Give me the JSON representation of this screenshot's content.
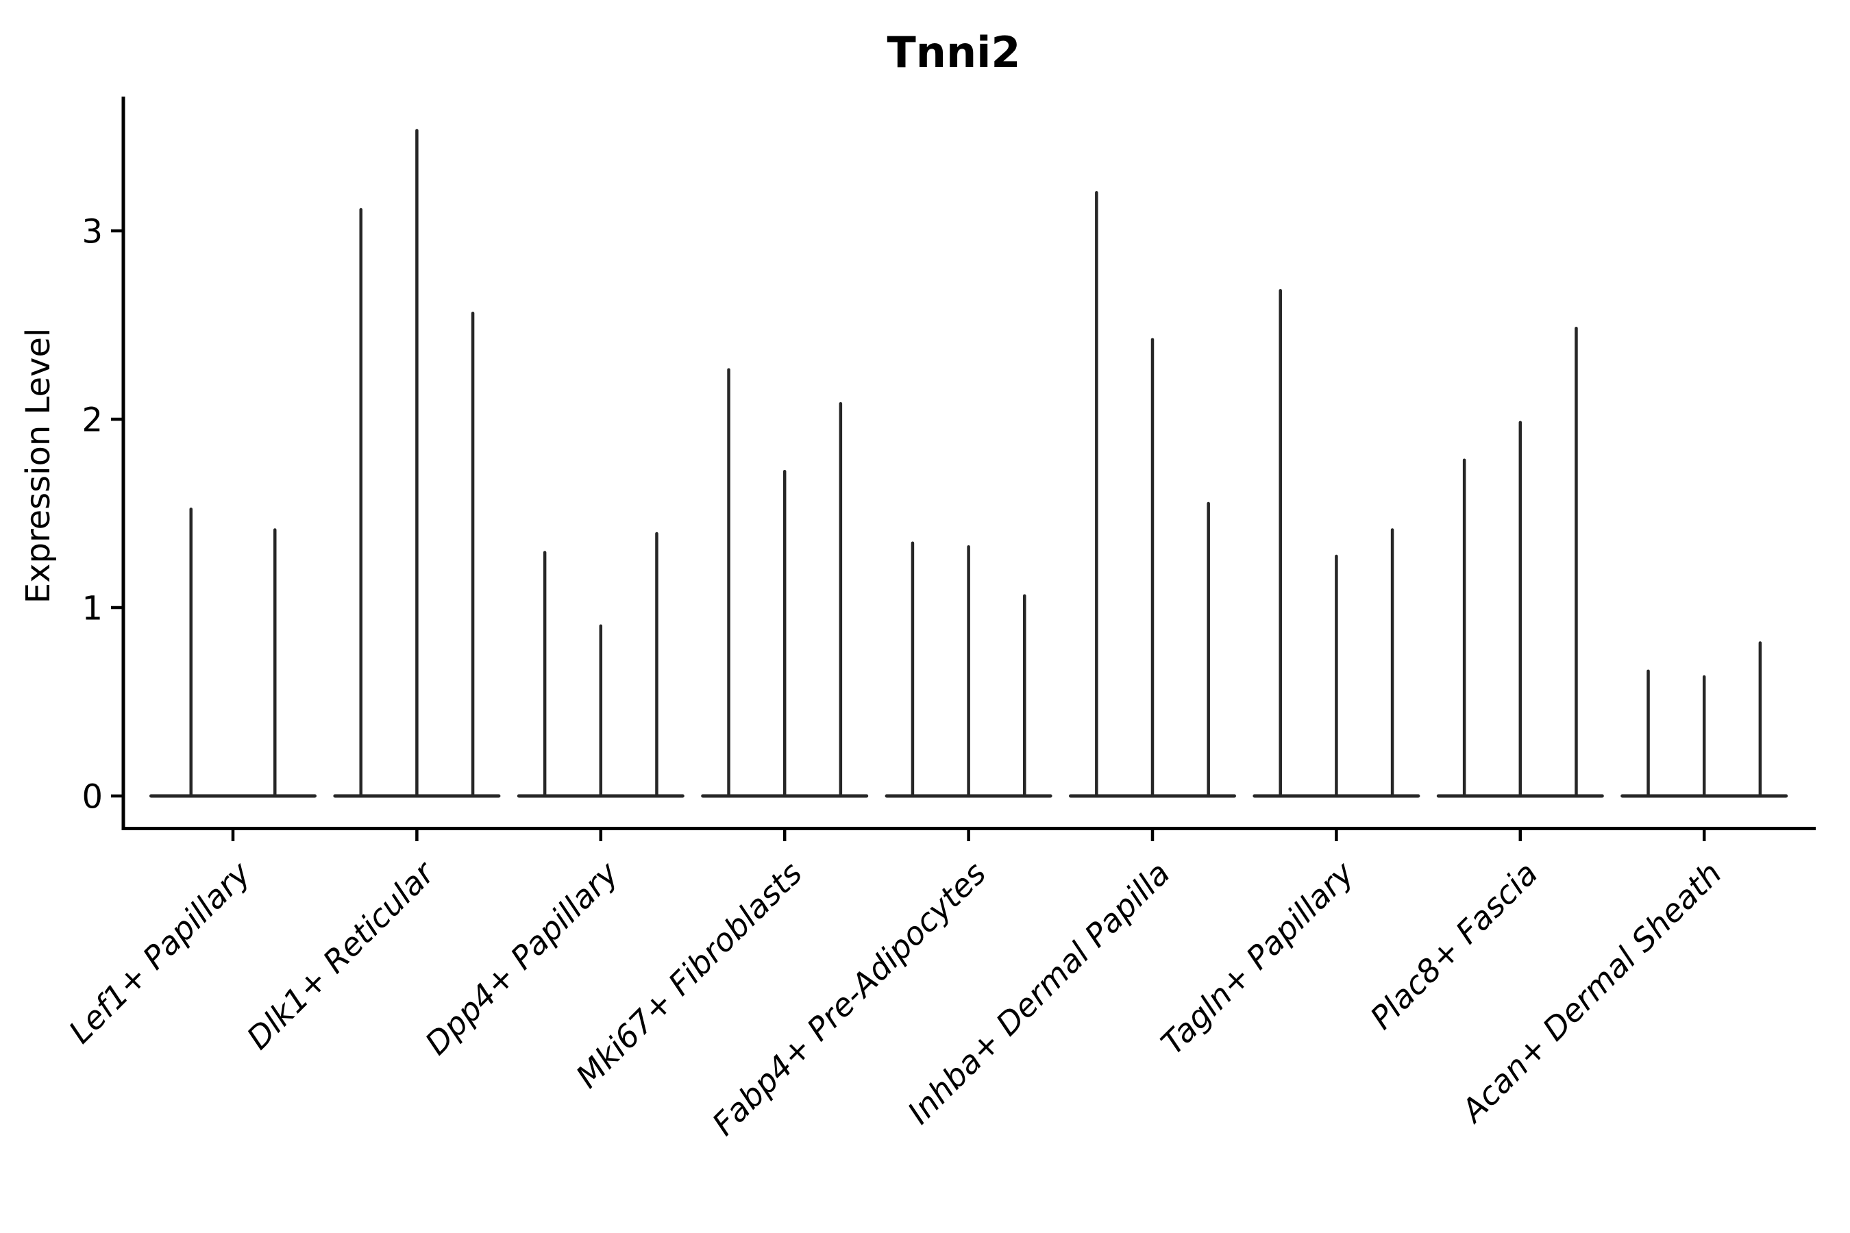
{
  "figure": {
    "background": "#ffffff",
    "violin_color": "#262626",
    "axis_color": "#000000",
    "text_color": "#000000"
  },
  "chart_data": {
    "type": "violin",
    "title": "Tnni2",
    "xlabel": "",
    "ylabel": "Expression Level",
    "yticks": [
      0,
      1,
      2,
      3
    ],
    "ylim": [
      -0.17,
      3.71
    ],
    "grid": false,
    "legend": "none",
    "x_tick_rotation": 45,
    "x_tick_style": "italic",
    "description": "Zero-inflated expression violins: each violin collapses to a flat line at 0 with a thin density spike reaching the maximum expression value; 2-3 violins (samples) per cluster.",
    "categories": [
      "Lef1+ Papillary",
      "Dlk1+ Reticular",
      "Dpp4+ Papillary",
      "Mki67+ Fibroblasts",
      "Fabp4+ Pre-Adipocytes",
      "Inhba+ Dermal Papilla",
      "Tagln+ Papillary",
      "Plac8+ Fascia",
      "Acan+ Dermal Sheath"
    ],
    "groups": [
      {
        "category": "Lef1+ Papillary",
        "violin_maxima": [
          1.53,
          1.42
        ]
      },
      {
        "category": "Dlk1+ Reticular",
        "violin_maxima": [
          3.12,
          3.54,
          2.57
        ]
      },
      {
        "category": "Dpp4+ Papillary",
        "violin_maxima": [
          1.3,
          0.91,
          1.4
        ]
      },
      {
        "category": "Mki67+ Fibroblasts",
        "violin_maxima": [
          2.27,
          1.73,
          2.09
        ]
      },
      {
        "category": "Fabp4+ Pre-Adipocytes",
        "violin_maxima": [
          1.35,
          1.33,
          1.07
        ]
      },
      {
        "category": "Inhba+ Dermal Papilla",
        "violin_maxima": [
          3.21,
          2.43,
          1.56
        ]
      },
      {
        "category": "Tagln+ Papillary",
        "violin_maxima": [
          2.69,
          1.28,
          1.42
        ]
      },
      {
        "category": "Plac8+ Fascia",
        "violin_maxima": [
          1.79,
          1.99,
          2.49
        ]
      },
      {
        "category": "Acan+ Dermal Sheath",
        "violin_maxima": [
          0.67,
          0.64,
          0.82
        ]
      }
    ]
  }
}
